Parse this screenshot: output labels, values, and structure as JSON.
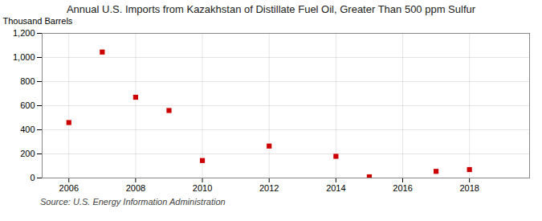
{
  "chart_data": {
    "type": "scatter",
    "title": "Annual U.S. Imports from Kazakhstan of Distillate Fuel Oil, Greater Than 500 ppm Sulfur",
    "ylabel": "Thousand Barrels",
    "source": "Source: U.S. Energy Information Administration",
    "x": [
      2006,
      2007,
      2008,
      2009,
      2010,
      2012,
      2014,
      2015,
      2017,
      2018
    ],
    "values": [
      460,
      1045,
      670,
      560,
      145,
      265,
      180,
      10,
      55,
      70
    ],
    "color": "#cc0000",
    "marker": "square",
    "xlim": [
      2005.2,
      2019.8
    ],
    "xticks": [
      2006,
      2008,
      2010,
      2012,
      2014,
      2016,
      2018
    ],
    "ylim": [
      0,
      1200
    ],
    "yticks": [
      0,
      200,
      400,
      600,
      800,
      {
        "value": 1000,
        "label": "1,000"
      },
      {
        "value": 1200,
        "label": "1,200"
      }
    ],
    "grid": true
  }
}
